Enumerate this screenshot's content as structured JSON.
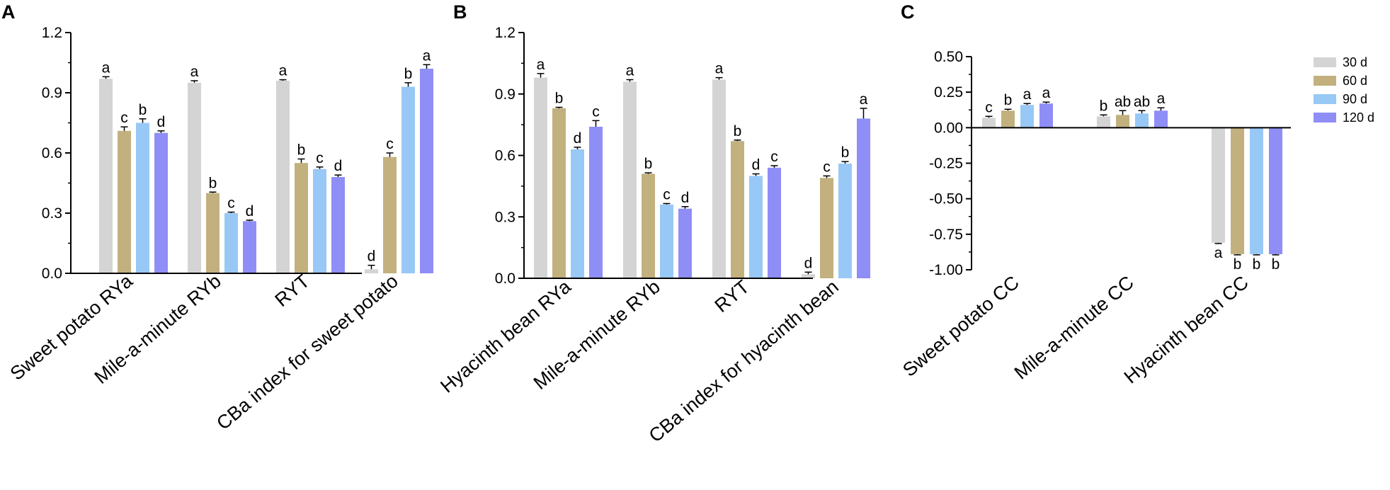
{
  "series_names": [
    "30 d",
    "60 d",
    "90 d",
    "120 d"
  ],
  "colors": {
    "30 d": "#d4d4d4",
    "60 d": "#c2b07e",
    "90 d": "#98c8f6",
    "120 d": "#8e8ef6"
  },
  "chart_data": [
    {
      "panel": "A",
      "type": "bar",
      "ylim": [
        0,
        1.2
      ],
      "yticks": [
        "0.0",
        "0.3",
        "0.6",
        "0.9",
        "1.2"
      ],
      "categories": [
        "Sweet potato RYa",
        "Mile-a-minute RYb",
        "RYT",
        "CBa index for sweet potato"
      ],
      "series": [
        {
          "name": "30 d",
          "values": [
            0.97,
            0.95,
            0.96,
            0.02
          ],
          "errors": [
            0.01,
            0.01,
            0.005,
            0.02
          ],
          "letters": [
            "a",
            "a",
            "a",
            "d"
          ]
        },
        {
          "name": "60 d",
          "values": [
            0.71,
            0.4,
            0.55,
            0.58
          ],
          "errors": [
            0.02,
            0.005,
            0.02,
            0.02
          ],
          "letters": [
            "c",
            "b",
            "b",
            "c"
          ]
        },
        {
          "name": "90 d",
          "values": [
            0.75,
            0.3,
            0.52,
            0.93
          ],
          "errors": [
            0.02,
            0.005,
            0.01,
            0.02
          ],
          "letters": [
            "b",
            "c",
            "c",
            "b"
          ]
        },
        {
          "name": "120 d",
          "values": [
            0.7,
            0.26,
            0.48,
            1.02
          ],
          "errors": [
            0.01,
            0.005,
            0.01,
            0.02
          ],
          "letters": [
            "d",
            "d",
            "d",
            "a"
          ]
        }
      ]
    },
    {
      "panel": "B",
      "type": "bar",
      "ylim": [
        0,
        1.2
      ],
      "yticks": [
        "0.0",
        "0.3",
        "0.6",
        "0.9",
        "1.2"
      ],
      "categories": [
        "Hyacinth bean RYa",
        "Mile-a-minute RYb",
        "RYT",
        "CBa index for hyacinth bean"
      ],
      "series": [
        {
          "name": "30 d",
          "values": [
            0.98,
            0.96,
            0.97,
            0.02
          ],
          "errors": [
            0.02,
            0.01,
            0.01,
            0.01
          ],
          "letters": [
            "a",
            "a",
            "a",
            "d"
          ]
        },
        {
          "name": "60 d",
          "values": [
            0.83,
            0.51,
            0.67,
            0.49
          ],
          "errors": [
            0.005,
            0.005,
            0.005,
            0.01
          ],
          "letters": [
            "b",
            "b",
            "b",
            "c"
          ]
        },
        {
          "name": "90 d",
          "values": [
            0.63,
            0.36,
            0.5,
            0.56
          ],
          "errors": [
            0.01,
            0.005,
            0.01,
            0.01
          ],
          "letters": [
            "d",
            "c",
            "d",
            "b"
          ]
        },
        {
          "name": "120 d",
          "values": [
            0.74,
            0.34,
            0.54,
            0.78
          ],
          "errors": [
            0.03,
            0.01,
            0.01,
            0.05
          ],
          "letters": [
            "c",
            "d",
            "c",
            "a"
          ]
        }
      ]
    },
    {
      "panel": "C",
      "type": "bar",
      "ylim": [
        -1.0,
        0.5
      ],
      "yticks": [
        "-1.00",
        "-0.75",
        "-0.50",
        "-0.25",
        "0.00",
        "0.25",
        "0.50"
      ],
      "categories": [
        "Sweet potato CC",
        "Mile-a-minute CC",
        "Hyacinth bean CC"
      ],
      "legend": "top-right",
      "series": [
        {
          "name": "30 d",
          "values": [
            0.07,
            0.08,
            -0.81
          ],
          "errors": [
            0.01,
            0.01,
            0.005
          ],
          "letters": [
            "c",
            "b",
            "a"
          ]
        },
        {
          "name": "60 d",
          "values": [
            0.12,
            0.09,
            -0.89
          ],
          "errors": [
            0.01,
            0.03,
            0.005
          ],
          "letters": [
            "b",
            "ab",
            "b"
          ]
        },
        {
          "name": "90 d",
          "values": [
            0.16,
            0.1,
            -0.89
          ],
          "errors": [
            0.01,
            0.02,
            0.005
          ],
          "letters": [
            "a",
            "ab",
            "b"
          ]
        },
        {
          "name": "120 d",
          "values": [
            0.17,
            0.12,
            -0.89
          ],
          "errors": [
            0.01,
            0.02,
            0.005
          ],
          "letters": [
            "a",
            "a",
            "b"
          ]
        }
      ]
    }
  ]
}
